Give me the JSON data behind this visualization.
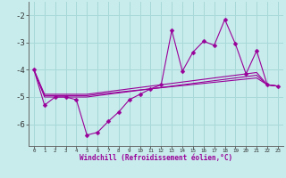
{
  "xlabel": "Windchill (Refroidissement éolien,°C)",
  "background_color": "#c8ecec",
  "grid_color": "#a8d8d8",
  "line_color": "#990099",
  "x_hours": [
    0,
    1,
    2,
    3,
    4,
    5,
    6,
    7,
    8,
    9,
    10,
    11,
    12,
    13,
    14,
    15,
    16,
    17,
    18,
    19,
    20,
    21,
    22,
    23
  ],
  "y_main": [
    -4.0,
    -5.3,
    -5.0,
    -5.0,
    -5.1,
    -6.4,
    -6.3,
    -5.9,
    -5.55,
    -5.1,
    -4.9,
    -4.7,
    -4.55,
    -2.55,
    -4.05,
    -3.35,
    -2.95,
    -3.1,
    -2.15,
    -3.05,
    -4.15,
    -3.3,
    -4.55,
    -4.6
  ],
  "y_line2": [
    -4.0,
    -4.9,
    -4.9,
    -4.9,
    -4.9,
    -4.9,
    -4.85,
    -4.8,
    -4.75,
    -4.7,
    -4.65,
    -4.6,
    -4.55,
    -4.5,
    -4.45,
    -4.4,
    -4.35,
    -4.3,
    -4.25,
    -4.2,
    -4.15,
    -4.1,
    -4.55,
    -4.6
  ],
  "y_line3": [
    -4.0,
    -4.95,
    -4.95,
    -4.95,
    -4.95,
    -4.95,
    -4.9,
    -4.86,
    -4.82,
    -4.78,
    -4.74,
    -4.7,
    -4.66,
    -4.62,
    -4.58,
    -4.54,
    -4.5,
    -4.46,
    -4.42,
    -4.38,
    -4.34,
    -4.3,
    -4.55,
    -4.6
  ],
  "y_line4": [
    -4.0,
    -5.0,
    -5.0,
    -5.0,
    -5.0,
    -5.0,
    -4.95,
    -4.9,
    -4.85,
    -4.8,
    -4.75,
    -4.7,
    -4.65,
    -4.6,
    -4.55,
    -4.5,
    -4.45,
    -4.4,
    -4.35,
    -4.3,
    -4.25,
    -4.2,
    -4.55,
    -4.6
  ],
  "ylim": [
    -6.8,
    -1.5
  ],
  "yticks": [
    -6,
    -5,
    -4,
    -3,
    -2
  ],
  "xlim": [
    -0.5,
    23.5
  ]
}
